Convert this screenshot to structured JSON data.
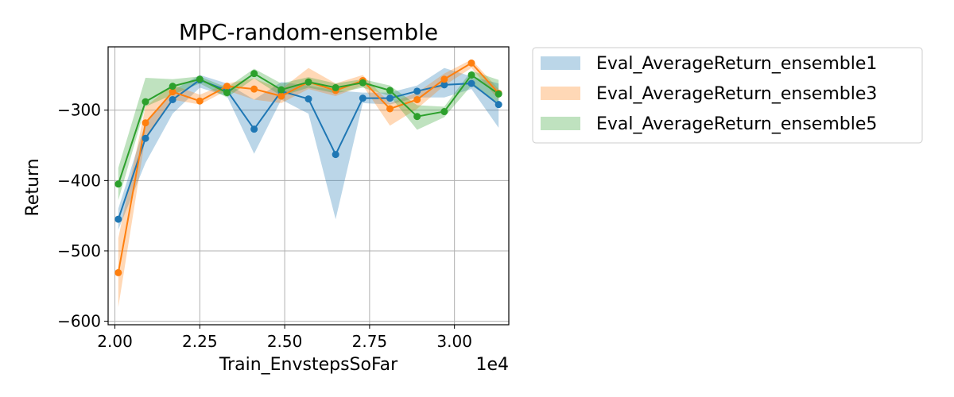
{
  "chart_data": {
    "type": "line",
    "title": "MPC-random-ensemble",
    "xlabel": "Train_EnvstepsSoFar",
    "ylabel": "Return",
    "x_offset_label": "1e4",
    "xlim": [
      1.98,
      3.16
    ],
    "ylim": [
      -605,
      -210
    ],
    "xticks": [
      2.0,
      2.25,
      2.5,
      2.75,
      3.0
    ],
    "xtick_labels": [
      "2.00",
      "2.25",
      "2.50",
      "2.75",
      "3.00"
    ],
    "yticks": [
      -600,
      -500,
      -400,
      -300
    ],
    "ytick_labels": [
      "−600",
      "−500",
      "−400",
      "−300"
    ],
    "grid": true,
    "legend_position": "outside-right",
    "x": [
      2.01,
      2.09,
      2.17,
      2.25,
      2.33,
      2.41,
      2.49,
      2.57,
      2.65,
      2.73,
      2.81,
      2.89,
      2.97,
      3.05,
      3.13
    ],
    "series": [
      {
        "name": "Eval_AverageReturn_ensemble1",
        "color": "#1f77b4",
        "values": [
          -455,
          -340,
          -285,
          -257,
          -272,
          -327,
          -273,
          -284,
          -363,
          -283,
          -283,
          -273,
          -264,
          -262,
          -292
        ],
        "lower": [
          -470,
          -375,
          -305,
          -268,
          -280,
          -362,
          -285,
          -305,
          -455,
          -290,
          -292,
          -282,
          -282,
          -270,
          -325
        ],
        "upper": [
          -440,
          -318,
          -272,
          -250,
          -262,
          -285,
          -260,
          -265,
          -272,
          -275,
          -275,
          -265,
          -240,
          -252,
          -262
        ]
      },
      {
        "name": "Eval_AverageReturn_ensemble3",
        "color": "#ff7f0e",
        "values": [
          -531,
          -318,
          -274,
          -287,
          -266,
          -270,
          -280,
          -260,
          -272,
          -258,
          -298,
          -285,
          -256,
          -233,
          -276
        ],
        "lower": [
          -580,
          -338,
          -285,
          -292,
          -272,
          -285,
          -290,
          -270,
          -280,
          -265,
          -322,
          -298,
          -265,
          -240,
          -285
        ],
        "upper": [
          -482,
          -295,
          -264,
          -278,
          -262,
          -255,
          -270,
          -240,
          -262,
          -250,
          -290,
          -275,
          -248,
          -228,
          -270
        ]
      },
      {
        "name": "Eval_AverageReturn_ensemble5",
        "color": "#2ca02c",
        "values": [
          -405,
          -288,
          -266,
          -256,
          -275,
          -248,
          -271,
          -260,
          -268,
          -261,
          -272,
          -309,
          -302,
          -250,
          -277
        ],
        "lower": [
          -428,
          -295,
          -278,
          -262,
          -282,
          -255,
          -280,
          -268,
          -276,
          -268,
          -280,
          -328,
          -310,
          -265,
          -290
        ],
        "upper": [
          -382,
          -254,
          -256,
          -252,
          -268,
          -241,
          -262,
          -253,
          -262,
          -256,
          -265,
          -293,
          -295,
          -244,
          -257
        ]
      }
    ]
  }
}
